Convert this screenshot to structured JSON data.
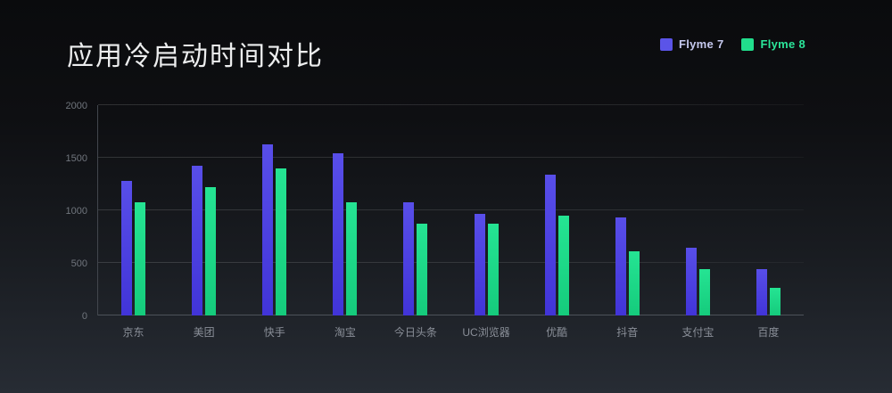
{
  "slide": {
    "title": "应用冷启动时间对比"
  },
  "legend": {
    "items": [
      {
        "label": "Flyme 7",
        "swatch_color": "#5b54e8",
        "text_color": "#c6c9ef"
      },
      {
        "label": "Flyme 8",
        "swatch_color": "#21dd8c",
        "text_color": "#2be69a"
      }
    ]
  },
  "chart_data": {
    "type": "bar",
    "title": "应用冷启动时间对比",
    "categories": [
      "京东",
      "美团",
      "快手",
      "淘宝",
      "今日头条",
      "UC浏览器",
      "优酷",
      "抖音",
      "支付宝",
      "百度"
    ],
    "series": [
      {
        "name": "Flyme 7",
        "color_top": "#584ee9",
        "color_bottom": "#4134d8",
        "values": [
          1280,
          1420,
          1630,
          1540,
          1080,
          970,
          1340,
          930,
          640,
          440
        ]
      },
      {
        "name": "Flyme 8",
        "color_top": "#25e493",
        "color_bottom": "#15cb7c",
        "values": [
          1080,
          1220,
          1400,
          1080,
          870,
          870,
          950,
          610,
          440,
          260
        ]
      }
    ],
    "xlabel": "",
    "ylabel": "",
    "ylim": [
      0,
      2000
    ],
    "yticks": [
      0,
      500,
      1000,
      1500,
      2000
    ],
    "grid": true,
    "legend_position": "top-right",
    "colors": {
      "grid": "rgba(255,255,255,0.13)",
      "axis_line": "#42464d",
      "baseline": "#4d525a",
      "ytick_text": "#70757d",
      "category_text": "#8a8f98",
      "title_text": "#ecedee"
    }
  }
}
